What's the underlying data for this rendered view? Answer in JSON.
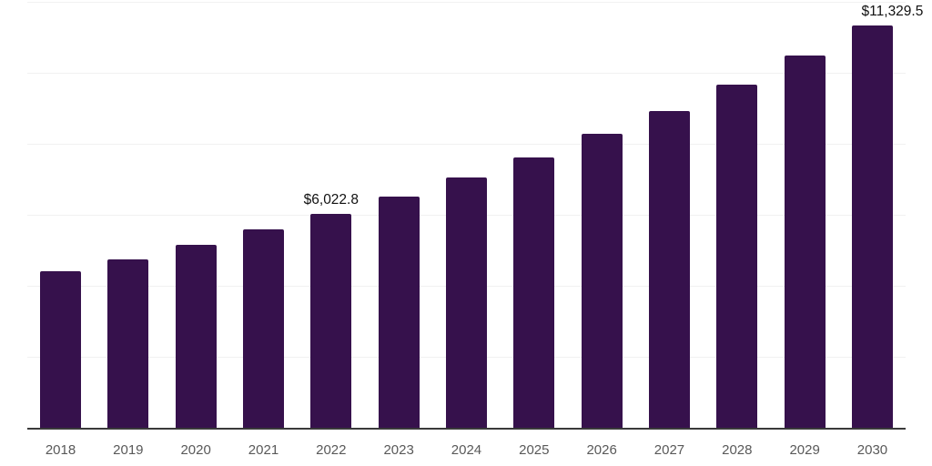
{
  "chart_data": {
    "type": "bar",
    "title": "",
    "xlabel": "",
    "ylabel": "",
    "categories": [
      "2018",
      "2019",
      "2020",
      "2021",
      "2022",
      "2023",
      "2024",
      "2025",
      "2026",
      "2027",
      "2028",
      "2029",
      "2030"
    ],
    "values": [
      4400,
      4750,
      5150,
      5580,
      6022.8,
      6510,
      7050,
      7610,
      8270,
      8920,
      9675,
      10490,
      11329.5
    ],
    "data_labels": [
      {
        "category": "2022",
        "text": "$6,022.8"
      },
      {
        "category": "2030",
        "text": "$11,329.5"
      }
    ],
    "ylim": [
      0,
      12000
    ],
    "grid_interval": 2000,
    "grid": true,
    "legend": false,
    "y_axis_labels_visible": false,
    "bar_color": "#36114C",
    "axis_color": "#3a3a3a",
    "gridline_color": "#f1f1f1",
    "tick_label_color": "#595959",
    "data_label_color": "#111111"
  }
}
